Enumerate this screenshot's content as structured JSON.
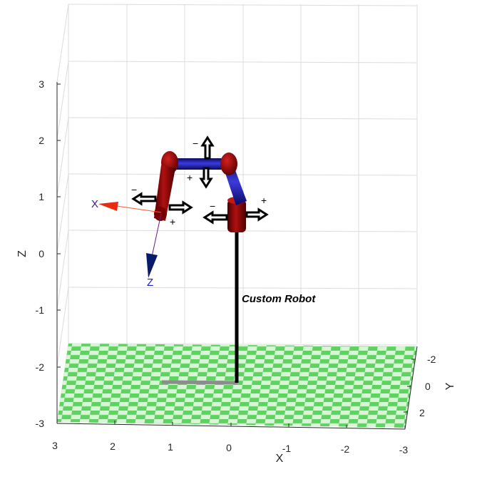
{
  "figure": {
    "robot_label": "Custom Robot",
    "axes": {
      "x": {
        "label": "X",
        "ticks": [
          "3",
          "2",
          "1",
          "0",
          "-1",
          "-2",
          "-3"
        ]
      },
      "y": {
        "label": "Y",
        "ticks": [
          "-2",
          "0",
          "2"
        ]
      },
      "z": {
        "label": "Z",
        "ticks": [
          "3",
          "2",
          "1",
          "0",
          "-1",
          "-2",
          "-3"
        ]
      }
    },
    "frame_labels": {
      "x": "X",
      "z": "Z"
    },
    "jog_signs": {
      "minus": "−",
      "plus": "+"
    },
    "colors": {
      "link_red": "#8b0000",
      "link_blue": "#1a1aa8",
      "floor_green": "#5fd35f",
      "floor_light": "#d8f5d8",
      "frame_x": "#ff3b1f",
      "frame_z": "#10105a",
      "grid": "#dcdcdc",
      "axis": "#262626"
    }
  }
}
